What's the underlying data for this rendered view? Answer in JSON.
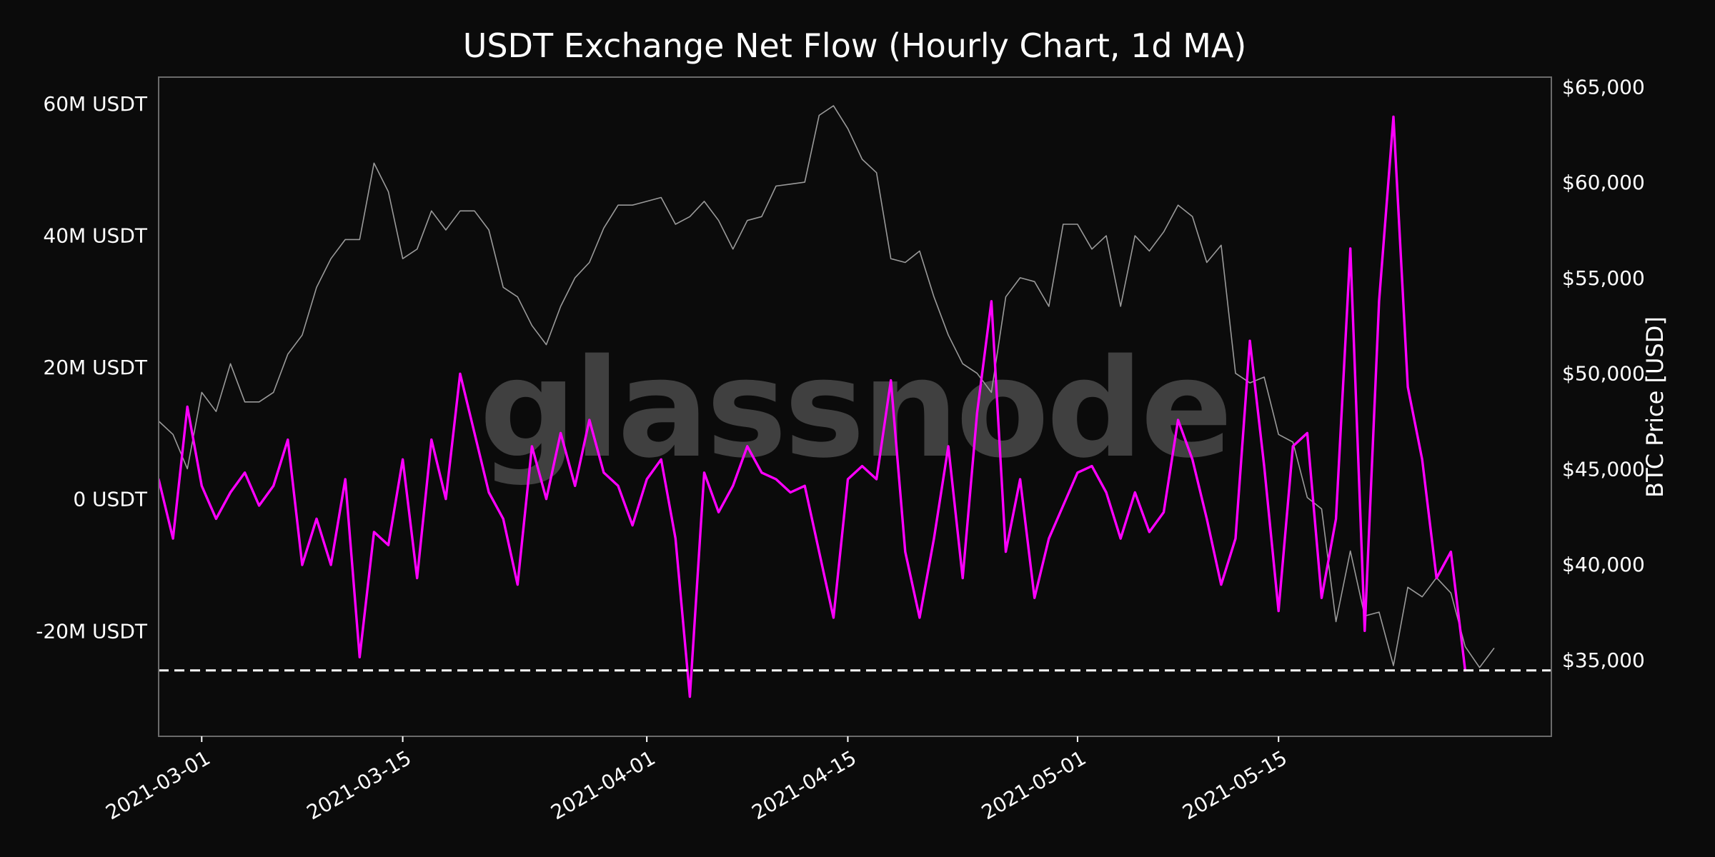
{
  "chart_data": {
    "type": "line",
    "title": "USDT Exchange Net Flow (Hourly Chart, 1d MA)",
    "watermark": "glassnode",
    "background_color": "#0b0b0b",
    "y_left": {
      "ylim": [
        -36,
        64
      ],
      "ticks": [
        -20,
        0,
        20,
        40,
        60
      ],
      "tick_labels": [
        "-20M USDT",
        "0 USDT",
        "20M USDT",
        "40M USDT",
        "60M USDT"
      ],
      "unit": "M USDT"
    },
    "y_right": {
      "label": "BTC Price [USD]",
      "ylim": [
        31000,
        65500
      ],
      "ticks": [
        35000,
        40000,
        45000,
        50000,
        55000,
        60000,
        65000
      ],
      "tick_labels": [
        "$35,000",
        "$40,000",
        "$45,000",
        "$50,000",
        "$55,000",
        "$60,000",
        "$65,000"
      ]
    },
    "x_axis": {
      "type": "date",
      "range": [
        "2021-02-26",
        "2021-06-03"
      ],
      "ticks": [
        "2021-03-01",
        "2021-03-15",
        "2021-04-01",
        "2021-04-15",
        "2021-05-01",
        "2021-05-15"
      ]
    },
    "reference_line": {
      "axis": "left",
      "value": -26,
      "style": "dashed",
      "color": "#ffffff"
    },
    "series": [
      {
        "axis": "right",
        "color": "#9a9a9a",
        "points": [
          [
            "2021-02-26",
            47500
          ],
          [
            "2021-02-27",
            46800
          ],
          [
            "2021-02-28",
            45000
          ],
          [
            "2021-03-01",
            49000
          ],
          [
            "2021-03-02",
            48000
          ],
          [
            "2021-03-03",
            50500
          ],
          [
            "2021-03-04",
            48500
          ],
          [
            "2021-03-05",
            48500
          ],
          [
            "2021-03-06",
            49000
          ],
          [
            "2021-03-07",
            51000
          ],
          [
            "2021-03-08",
            52000
          ],
          [
            "2021-03-09",
            54500
          ],
          [
            "2021-03-10",
            56000
          ],
          [
            "2021-03-11",
            57000
          ],
          [
            "2021-03-12",
            57000
          ],
          [
            "2021-03-13",
            61000
          ],
          [
            "2021-03-14",
            59500
          ],
          [
            "2021-03-15",
            56000
          ],
          [
            "2021-03-16",
            56500
          ],
          [
            "2021-03-17",
            58500
          ],
          [
            "2021-03-18",
            57500
          ],
          [
            "2021-03-19",
            58500
          ],
          [
            "2021-03-20",
            58500
          ],
          [
            "2021-03-21",
            57500
          ],
          [
            "2021-03-22",
            54500
          ],
          [
            "2021-03-23",
            54000
          ],
          [
            "2021-03-24",
            52500
          ],
          [
            "2021-03-25",
            51500
          ],
          [
            "2021-03-26",
            53500
          ],
          [
            "2021-03-27",
            55000
          ],
          [
            "2021-03-28",
            55800
          ],
          [
            "2021-03-29",
            57600
          ],
          [
            "2021-03-30",
            58800
          ],
          [
            "2021-03-31",
            58800
          ],
          [
            "2021-04-01",
            59000
          ],
          [
            "2021-04-02",
            59200
          ],
          [
            "2021-04-03",
            57800
          ],
          [
            "2021-04-04",
            58200
          ],
          [
            "2021-04-05",
            59000
          ],
          [
            "2021-04-06",
            58000
          ],
          [
            "2021-04-07",
            56500
          ],
          [
            "2021-04-08",
            58000
          ],
          [
            "2021-04-09",
            58200
          ],
          [
            "2021-04-10",
            59800
          ],
          [
            "2021-04-11",
            59900
          ],
          [
            "2021-04-12",
            60000
          ],
          [
            "2021-04-13",
            63500
          ],
          [
            "2021-04-14",
            64000
          ],
          [
            "2021-04-15",
            62800
          ],
          [
            "2021-04-16",
            61200
          ],
          [
            "2021-04-17",
            60500
          ],
          [
            "2021-04-18",
            56000
          ],
          [
            "2021-04-19",
            55800
          ],
          [
            "2021-04-20",
            56400
          ],
          [
            "2021-04-21",
            54000
          ],
          [
            "2021-04-22",
            52000
          ],
          [
            "2021-04-23",
            50500
          ],
          [
            "2021-04-24",
            50000
          ],
          [
            "2021-04-25",
            49000
          ],
          [
            "2021-04-26",
            54000
          ],
          [
            "2021-04-27",
            55000
          ],
          [
            "2021-04-28",
            54800
          ],
          [
            "2021-04-29",
            53500
          ],
          [
            "2021-04-30",
            57800
          ],
          [
            "2021-05-01",
            57800
          ],
          [
            "2021-05-02",
            56500
          ],
          [
            "2021-05-03",
            57200
          ],
          [
            "2021-05-04",
            53500
          ],
          [
            "2021-05-05",
            57200
          ],
          [
            "2021-05-06",
            56400
          ],
          [
            "2021-05-07",
            57400
          ],
          [
            "2021-05-08",
            58800
          ],
          [
            "2021-05-09",
            58200
          ],
          [
            "2021-05-10",
            55800
          ],
          [
            "2021-05-11",
            56700
          ],
          [
            "2021-05-12",
            50000
          ],
          [
            "2021-05-13",
            49500
          ],
          [
            "2021-05-14",
            49800
          ],
          [
            "2021-05-15",
            46800
          ],
          [
            "2021-05-16",
            46400
          ],
          [
            "2021-05-17",
            43500
          ],
          [
            "2021-05-18",
            42900
          ],
          [
            "2021-05-19",
            37000
          ],
          [
            "2021-05-20",
            40700
          ],
          [
            "2021-05-21",
            37300
          ],
          [
            "2021-05-22",
            37500
          ],
          [
            "2021-05-23",
            34700
          ],
          [
            "2021-05-24",
            38800
          ],
          [
            "2021-05-25",
            38300
          ],
          [
            "2021-05-26",
            39300
          ],
          [
            "2021-05-27",
            38500
          ],
          [
            "2021-05-28",
            35700
          ],
          [
            "2021-05-29",
            34600
          ],
          [
            "2021-05-30",
            35600
          ]
        ]
      },
      {
        "axis": "left",
        "color": "#ff00ff",
        "points": [
          [
            "2021-02-26",
            3
          ],
          [
            "2021-02-27",
            -6
          ],
          [
            "2021-02-28",
            14
          ],
          [
            "2021-03-01",
            2
          ],
          [
            "2021-03-02",
            -3
          ],
          [
            "2021-03-03",
            1
          ],
          [
            "2021-03-04",
            4
          ],
          [
            "2021-03-05",
            -1
          ],
          [
            "2021-03-06",
            2
          ],
          [
            "2021-03-07",
            9
          ],
          [
            "2021-03-08",
            -10
          ],
          [
            "2021-03-09",
            -3
          ],
          [
            "2021-03-10",
            -10
          ],
          [
            "2021-03-11",
            3
          ],
          [
            "2021-03-12",
            -24
          ],
          [
            "2021-03-13",
            -5
          ],
          [
            "2021-03-14",
            -7
          ],
          [
            "2021-03-15",
            6
          ],
          [
            "2021-03-16",
            -12
          ],
          [
            "2021-03-17",
            9
          ],
          [
            "2021-03-18",
            0
          ],
          [
            "2021-03-19",
            19
          ],
          [
            "2021-03-20",
            10
          ],
          [
            "2021-03-21",
            1
          ],
          [
            "2021-03-22",
            -3
          ],
          [
            "2021-03-23",
            -13
          ],
          [
            "2021-03-24",
            8
          ],
          [
            "2021-03-25",
            0
          ],
          [
            "2021-03-26",
            10
          ],
          [
            "2021-03-27",
            2
          ],
          [
            "2021-03-28",
            12
          ],
          [
            "2021-03-29",
            4
          ],
          [
            "2021-03-30",
            2
          ],
          [
            "2021-03-31",
            -4
          ],
          [
            "2021-04-01",
            3
          ],
          [
            "2021-04-02",
            6
          ],
          [
            "2021-04-03",
            -6
          ],
          [
            "2021-04-04",
            -30
          ],
          [
            "2021-04-05",
            4
          ],
          [
            "2021-04-06",
            -2
          ],
          [
            "2021-04-07",
            2
          ],
          [
            "2021-04-08",
            8
          ],
          [
            "2021-04-09",
            4
          ],
          [
            "2021-04-10",
            3
          ],
          [
            "2021-04-11",
            1
          ],
          [
            "2021-04-12",
            2
          ],
          [
            "2021-04-13",
            -8
          ],
          [
            "2021-04-14",
            -18
          ],
          [
            "2021-04-15",
            3
          ],
          [
            "2021-04-16",
            5
          ],
          [
            "2021-04-17",
            3
          ],
          [
            "2021-04-18",
            18
          ],
          [
            "2021-04-19",
            -8
          ],
          [
            "2021-04-20",
            -18
          ],
          [
            "2021-04-21",
            -6
          ],
          [
            "2021-04-22",
            8
          ],
          [
            "2021-04-23",
            -12
          ],
          [
            "2021-04-24",
            13
          ],
          [
            "2021-04-25",
            30
          ],
          [
            "2021-04-26",
            -8
          ],
          [
            "2021-04-27",
            3
          ],
          [
            "2021-04-28",
            -15
          ],
          [
            "2021-04-29",
            -6
          ],
          [
            "2021-04-30",
            -1
          ],
          [
            "2021-05-01",
            4
          ],
          [
            "2021-05-02",
            5
          ],
          [
            "2021-05-03",
            1
          ],
          [
            "2021-05-04",
            -6
          ],
          [
            "2021-05-05",
            1
          ],
          [
            "2021-05-06",
            -5
          ],
          [
            "2021-05-07",
            -2
          ],
          [
            "2021-05-08",
            12
          ],
          [
            "2021-05-09",
            6
          ],
          [
            "2021-05-10",
            -3
          ],
          [
            "2021-05-11",
            -13
          ],
          [
            "2021-05-12",
            -6
          ],
          [
            "2021-05-13",
            24
          ],
          [
            "2021-05-14",
            5
          ],
          [
            "2021-05-15",
            -17
          ],
          [
            "2021-05-16",
            8
          ],
          [
            "2021-05-17",
            10
          ],
          [
            "2021-05-18",
            -15
          ],
          [
            "2021-05-19",
            -3
          ],
          [
            "2021-05-20",
            38
          ],
          [
            "2021-05-21",
            -20
          ],
          [
            "2021-05-22",
            30
          ],
          [
            "2021-05-23",
            58
          ],
          [
            "2021-05-24",
            17
          ],
          [
            "2021-05-25",
            6
          ],
          [
            "2021-05-26",
            -12
          ],
          [
            "2021-05-27",
            -8
          ],
          [
            "2021-05-28",
            -26
          ]
        ]
      }
    ]
  }
}
